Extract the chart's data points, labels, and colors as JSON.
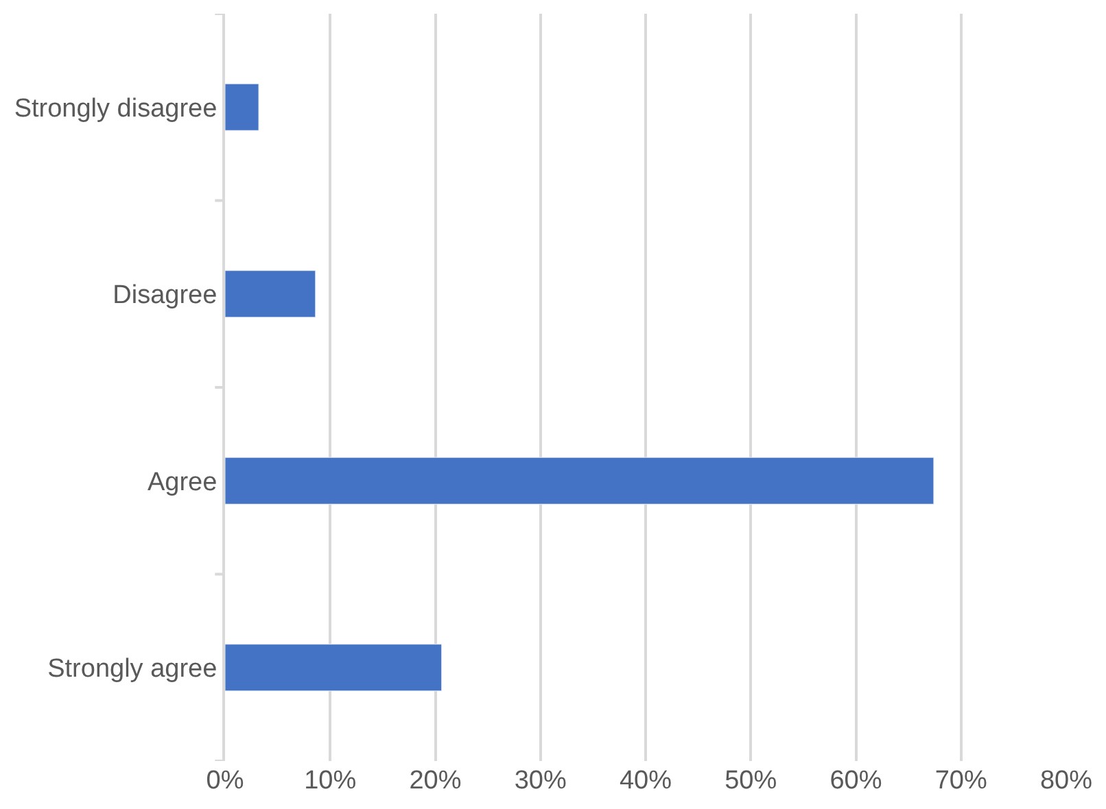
{
  "chart_data": {
    "type": "bar",
    "orientation": "horizontal",
    "categories": [
      "Strongly disagree",
      "Disagree",
      "Agree",
      "Strongly agree"
    ],
    "values": [
      3.2,
      8.6,
      67.4,
      20.6
    ],
    "color": "#4472c4",
    "xlim": [
      0,
      80
    ],
    "xticks": [
      {
        "value": 0,
        "label": "0%"
      },
      {
        "value": 10,
        "label": "10%"
      },
      {
        "value": 20,
        "label": "20%"
      },
      {
        "value": 30,
        "label": "30%"
      },
      {
        "value": 40,
        "label": "40%"
      },
      {
        "value": 50,
        "label": "50%"
      },
      {
        "value": 60,
        "label": "60%"
      },
      {
        "value": 70,
        "label": "70%"
      },
      {
        "value": 80,
        "label": "80%"
      }
    ],
    "grid": "x",
    "legend": false
  }
}
